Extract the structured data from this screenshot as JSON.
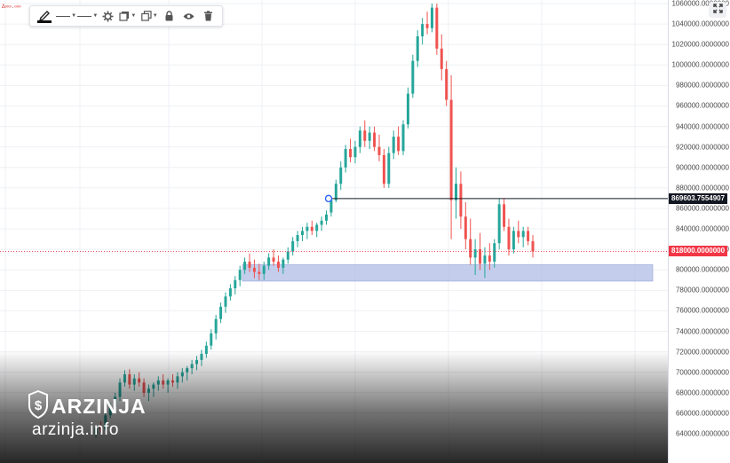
{
  "toolbar": {
    "items": [
      {
        "name": "pencil-icon"
      },
      {
        "name": "line-style-dropdown"
      },
      {
        "name": "line-width-dropdown"
      },
      {
        "name": "gear-icon"
      },
      {
        "name": "layers-icon"
      },
      {
        "name": "clone-icon"
      },
      {
        "name": "lock-icon"
      },
      {
        "name": "eye-icon"
      },
      {
        "name": "trash-icon"
      }
    ]
  },
  "top_left_label": "Δ∞∞.∞∞",
  "watermark": {
    "brand": "ARZINJA",
    "url": "arzinja.info"
  },
  "price_tags": {
    "cursor_price": "869603.7554907",
    "last_price": "818000.0000000"
  },
  "colors": {
    "up": "#26a69a",
    "down": "#ef5350",
    "zone": "#b0bde6",
    "last_price": "#f23645",
    "cursor_tag": "#131722"
  },
  "chart_data": {
    "type": "candlestick",
    "y_axis_ticks": [
      "1060000.0000000",
      "1040000.0000000",
      "1020000.0000000",
      "1000000.0000000",
      "980000.0000000",
      "960000.0000000",
      "940000.0000000",
      "920000.0000000",
      "900000.0000000",
      "880000.0000000",
      "860000.0000000",
      "840000.0000000",
      "820000.0000000",
      "800000.0000000",
      "780000.0000000",
      "760000.0000000",
      "740000.0000000",
      "720000.0000000",
      "700000.0000000",
      "680000.0000000",
      "660000.0000000",
      "640000.0000000"
    ],
    "ylim": [
      635000,
      1063000
    ],
    "last_price": 818000,
    "horizontal_ray": 869603.7554907,
    "support_zone": [
      789000,
      805000
    ],
    "candles": [
      [
        640000,
        648000,
        636000,
        646000
      ],
      [
        646000,
        652000,
        641000,
        644000
      ],
      [
        644000,
        660000,
        642000,
        658000
      ],
      [
        658000,
        670000,
        655000,
        666000
      ],
      [
        666000,
        680000,
        660000,
        676000
      ],
      [
        676000,
        694000,
        672000,
        690000
      ],
      [
        690000,
        702000,
        686000,
        698000
      ],
      [
        698000,
        703000,
        684000,
        688000
      ],
      [
        688000,
        698000,
        682000,
        694000
      ],
      [
        694000,
        700000,
        686000,
        690000
      ],
      [
        690000,
        694000,
        676000,
        680000
      ],
      [
        680000,
        688000,
        672000,
        684000
      ],
      [
        684000,
        690000,
        676000,
        688000
      ],
      [
        688000,
        696000,
        682000,
        692000
      ],
      [
        692000,
        698000,
        684000,
        688000
      ],
      [
        688000,
        694000,
        680000,
        692000
      ],
      [
        692000,
        698000,
        686000,
        690000
      ],
      [
        690000,
        700000,
        684000,
        696000
      ],
      [
        696000,
        704000,
        690000,
        700000
      ],
      [
        700000,
        706000,
        692000,
        704000
      ],
      [
        704000,
        712000,
        698000,
        708000
      ],
      [
        708000,
        716000,
        702000,
        712000
      ],
      [
        712000,
        722000,
        706000,
        718000
      ],
      [
        718000,
        730000,
        714000,
        726000
      ],
      [
        726000,
        742000,
        722000,
        738000
      ],
      [
        738000,
        756000,
        732000,
        752000
      ],
      [
        752000,
        768000,
        748000,
        764000
      ],
      [
        764000,
        778000,
        758000,
        774000
      ],
      [
        774000,
        786000,
        770000,
        782000
      ],
      [
        782000,
        794000,
        776000,
        790000
      ],
      [
        790000,
        804000,
        784000,
        800000
      ],
      [
        800000,
        812000,
        796000,
        808000
      ],
      [
        808000,
        816000,
        798000,
        802000
      ],
      [
        802000,
        810000,
        792000,
        798000
      ],
      [
        798000,
        806000,
        790000,
        796000
      ],
      [
        796000,
        808000,
        790000,
        804000
      ],
      [
        804000,
        816000,
        800000,
        812000
      ],
      [
        812000,
        820000,
        804000,
        808000
      ],
      [
        808000,
        814000,
        798000,
        802000
      ],
      [
        802000,
        812000,
        796000,
        810000
      ],
      [
        810000,
        822000,
        806000,
        818000
      ],
      [
        818000,
        832000,
        814000,
        828000
      ],
      [
        828000,
        838000,
        822000,
        834000
      ],
      [
        834000,
        842000,
        828000,
        838000
      ],
      [
        838000,
        846000,
        830000,
        842000
      ],
      [
        842000,
        848000,
        834000,
        838000
      ],
      [
        838000,
        846000,
        832000,
        844000
      ],
      [
        844000,
        852000,
        838000,
        848000
      ],
      [
        848000,
        858000,
        844000,
        854000
      ],
      [
        856000,
        870000,
        852000,
        868000
      ],
      [
        868000,
        888000,
        866000,
        884000
      ],
      [
        884000,
        906000,
        878000,
        900000
      ],
      [
        900000,
        922000,
        895000,
        918000
      ],
      [
        918000,
        928000,
        905000,
        910000
      ],
      [
        910000,
        926000,
        904000,
        920000
      ],
      [
        920000,
        940000,
        914000,
        936000
      ],
      [
        936000,
        946000,
        920000,
        926000
      ],
      [
        926000,
        940000,
        918000,
        934000
      ],
      [
        934000,
        940000,
        916000,
        920000
      ],
      [
        920000,
        932000,
        906000,
        912000
      ],
      [
        912000,
        918000,
        880000,
        884000
      ],
      [
        884000,
        920000,
        880000,
        914000
      ],
      [
        914000,
        936000,
        908000,
        930000
      ],
      [
        930000,
        940000,
        912000,
        916000
      ],
      [
        916000,
        946000,
        912000,
        942000
      ],
      [
        942000,
        978000,
        938000,
        972000
      ],
      [
        972000,
        1010000,
        968000,
        1004000
      ],
      [
        1004000,
        1034000,
        998000,
        1028000
      ],
      [
        1028000,
        1046000,
        1020000,
        1040000
      ],
      [
        1040000,
        1052000,
        1030000,
        1036000
      ],
      [
        1036000,
        1060000,
        1032000,
        1056000
      ],
      [
        1056000,
        1060000,
        1010000,
        1016000
      ],
      [
        1016000,
        1030000,
        985000,
        996000
      ],
      [
        996000,
        1004000,
        960000,
        966000
      ],
      [
        966000,
        990000,
        830000,
        868000
      ],
      [
        868000,
        900000,
        850000,
        884000
      ],
      [
        884000,
        896000,
        840000,
        852000
      ],
      [
        852000,
        866000,
        820000,
        830000
      ],
      [
        830000,
        850000,
        805000,
        812000
      ],
      [
        812000,
        830000,
        795000,
        820000
      ],
      [
        820000,
        836000,
        800000,
        806000
      ],
      [
        806000,
        822000,
        792000,
        814000
      ],
      [
        814000,
        826000,
        800000,
        808000
      ],
      [
        808000,
        830000,
        802000,
        826000
      ],
      [
        826000,
        870000,
        820000,
        864000
      ],
      [
        864000,
        870000,
        838000,
        842000
      ],
      [
        842000,
        850000,
        814000,
        820000
      ],
      [
        820000,
        842000,
        816000,
        838000
      ],
      [
        838000,
        848000,
        826000,
        832000
      ],
      [
        832000,
        842000,
        822000,
        838000
      ],
      [
        838000,
        842000,
        824000,
        828000
      ],
      [
        828000,
        834000,
        812000,
        818000
      ]
    ]
  }
}
